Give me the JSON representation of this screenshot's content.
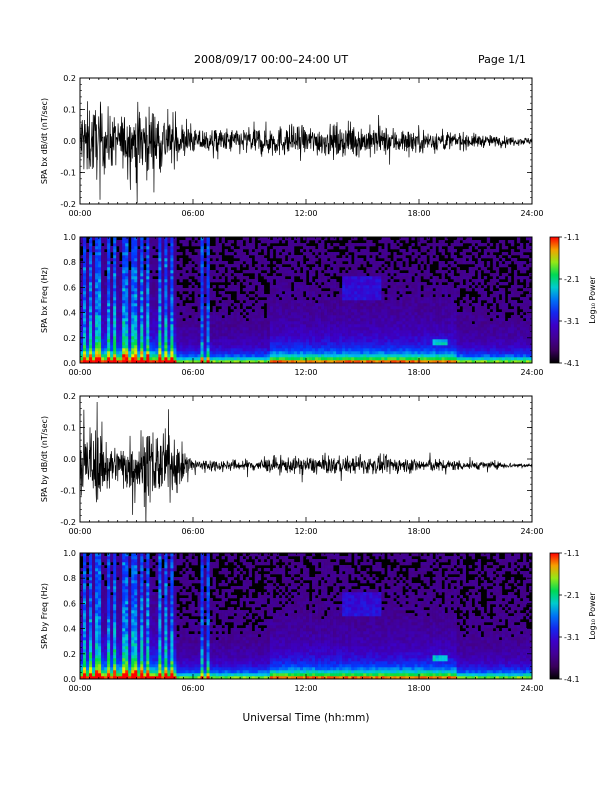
{
  "header": {
    "title": "2008/09/17  00:00–24:00 UT",
    "page": "Page 1/1"
  },
  "xlabel": "Universal Time (hh:mm)",
  "colors": {
    "trace": "#000000",
    "spectrogram_bg": "#000000"
  },
  "colorbar": {
    "label": "Log₁₀ Power",
    "ticks": [
      "-1.1",
      "-2.1",
      "-3.1",
      "-4.1"
    ],
    "range": [
      -4.1,
      -1.1
    ],
    "colormap": "rainbow (black-purple-blue-cyan-green-yellow-red)"
  },
  "chart_data": [
    {
      "type": "line",
      "title": "",
      "ylabel": "SPA bx dB/dt (nT/sec)",
      "xlabel": "",
      "x_ticks": [
        "00:00",
        "06:00",
        "12:00",
        "18:00",
        "24:00"
      ],
      "xlim_hours": [
        0,
        24
      ],
      "ylim": [
        -0.2,
        0.2
      ],
      "y_ticks": [
        "0.2",
        "0.1",
        "0.0",
        "-0.1",
        "-0.2"
      ],
      "series": [
        {
          "x_hours": [
            0,
            1,
            2,
            3,
            4,
            5,
            6,
            8,
            10,
            12,
            14,
            16,
            18,
            20,
            22,
            24
          ],
          "envelope_amplitude": [
            0.2,
            0.2,
            0.13,
            0.2,
            0.2,
            0.12,
            0.07,
            0.07,
            0.09,
            0.08,
            0.09,
            0.08,
            0.07,
            0.05,
            0.03,
            0.02
          ],
          "baseline": 0.0
        }
      ]
    },
    {
      "type": "heatmap",
      "title": "",
      "ylabel": "SPA bx Freq (Hz)",
      "x_ticks": [
        "00:00",
        "06:00",
        "12:00",
        "18:00",
        "24:00"
      ],
      "xlim_hours": [
        0,
        24
      ],
      "ylim": [
        0.0,
        1.0
      ],
      "y_ticks": [
        "1.0",
        "0.8",
        "0.6",
        "0.4",
        "0.2",
        "0.0"
      ],
      "features": {
        "broadband_spikes_hours": [
          0.2,
          0.5,
          0.9,
          1.1,
          1.5,
          1.9,
          2.4,
          2.8,
          3.0,
          3.3,
          3.6,
          4.2,
          4.6,
          4.9,
          6.5,
          6.8
        ],
        "enhancement_patch": {
          "hours": [
            14.0,
            16.0
          ],
          "freq_hz": [
            0.5,
            0.7
          ]
        },
        "pc1_patch": {
          "hours": [
            18.8,
            19.5
          ],
          "freq_hz": [
            0.15,
            0.2
          ]
        }
      }
    },
    {
      "type": "line",
      "title": "",
      "ylabel": "SPA by dB/dt (nT/sec)",
      "xlabel": "",
      "x_ticks": [
        "00:00",
        "06:00",
        "12:00",
        "18:00",
        "24:00"
      ],
      "xlim_hours": [
        0,
        24
      ],
      "ylim": [
        -0.2,
        0.2
      ],
      "y_ticks": [
        "0.2",
        "0.1",
        "0.0",
        "-0.1",
        "-0.2"
      ],
      "series": [
        {
          "x_hours": [
            0,
            1,
            2,
            3,
            4,
            5,
            6,
            8,
            10,
            12,
            14,
            16,
            18,
            20,
            22,
            24
          ],
          "envelope_amplitude": [
            0.2,
            0.2,
            0.1,
            0.2,
            0.2,
            0.15,
            0.04,
            0.03,
            0.04,
            0.05,
            0.05,
            0.05,
            0.04,
            0.03,
            0.02,
            0.01
          ],
          "baseline": -0.02
        }
      ]
    },
    {
      "type": "heatmap",
      "title": "",
      "ylabel": "SPA by Freq (Hz)",
      "x_ticks": [
        "00:00",
        "06:00",
        "12:00",
        "18:00",
        "24:00"
      ],
      "xlim_hours": [
        0,
        24
      ],
      "ylim": [
        0.0,
        1.0
      ],
      "y_ticks": [
        "1.0",
        "0.8",
        "0.6",
        "0.4",
        "0.2",
        "0.0"
      ],
      "features": {
        "broadband_spikes_hours": [
          0.2,
          0.5,
          0.9,
          1.1,
          1.5,
          1.9,
          2.4,
          2.8,
          3.0,
          3.3,
          3.6,
          4.2,
          4.6,
          4.9,
          6.5,
          6.8
        ],
        "enhancement_patch": {
          "hours": [
            14.0,
            16.0
          ],
          "freq_hz": [
            0.5,
            0.7
          ]
        },
        "pc1_patch": {
          "hours": [
            18.8,
            19.5
          ],
          "freq_hz": [
            0.15,
            0.2
          ]
        }
      }
    }
  ]
}
